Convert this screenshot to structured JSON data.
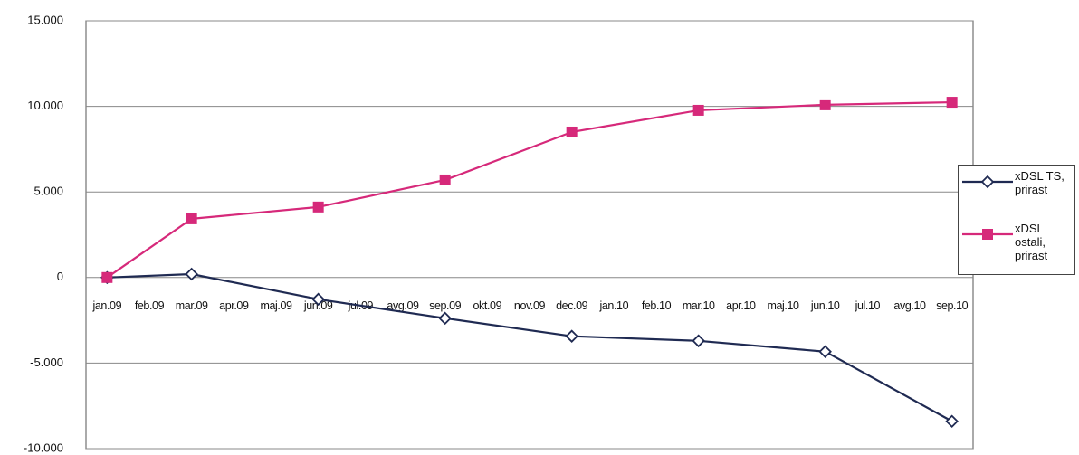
{
  "chart_data": {
    "type": "line",
    "categories": [
      "jan.09",
      "feb.09",
      "mar.09",
      "apr.09",
      "maj.09",
      "jun.09",
      "jul.09",
      "avg.09",
      "sep.09",
      "okt.09",
      "nov.09",
      "dec.09",
      "jan.10",
      "feb.10",
      "mar.10",
      "apr.10",
      "maj.10",
      "jun.10",
      "jul.10",
      "avg.10",
      "sep.10"
    ],
    "series": [
      {
        "name": "xDSL TS, prirast",
        "color": "#1f2a52",
        "marker": "diamond",
        "values": [
          0,
          null,
          200,
          null,
          null,
          -1270,
          null,
          null,
          -2380,
          null,
          null,
          -3430,
          null,
          null,
          -3700,
          null,
          null,
          -4330,
          null,
          null,
          -8400
        ]
      },
      {
        "name": "xDSL ostali, prirast",
        "color": "#d6297a",
        "marker": "square",
        "values": [
          0,
          null,
          3430,
          null,
          null,
          4120,
          null,
          null,
          5700,
          null,
          null,
          8500,
          null,
          null,
          9770,
          null,
          null,
          10090,
          null,
          null,
          10240
        ]
      }
    ],
    "ylim": [
      -10000,
      15000
    ],
    "yticks": [
      {
        "value": -10000,
        "label": "-10.000"
      },
      {
        "value": -5000,
        "label": "-5.000"
      },
      0,
      {
        "value": 5000,
        "label": "5.000"
      },
      {
        "value": 10000,
        "label": "10.000"
      },
      {
        "value": 15000,
        "label": "15.000"
      }
    ],
    "grid": true
  }
}
